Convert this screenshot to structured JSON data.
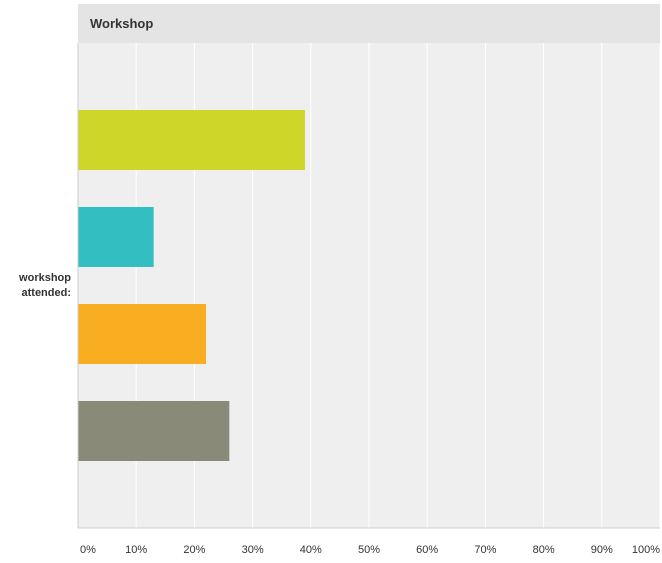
{
  "chart_data": {
    "type": "bar",
    "orientation": "horizontal",
    "title": "Workshop",
    "row_label": [
      "workshop",
      "attended:"
    ],
    "xlim": [
      0,
      100
    ],
    "tick_labels": [
      "0%",
      "10%",
      "20%",
      "30%",
      "40%",
      "50%",
      "60%",
      "70%",
      "80%",
      "90%",
      "100%"
    ],
    "grid": true,
    "series": [
      {
        "values": [
          39
        ],
        "color": "#cfd62a"
      },
      {
        "values": [
          13
        ],
        "color": "#33bfc1"
      },
      {
        "values": [
          22
        ],
        "color": "#f8ae20"
      },
      {
        "values": [
          26
        ],
        "color": "#8a8a79"
      }
    ]
  }
}
